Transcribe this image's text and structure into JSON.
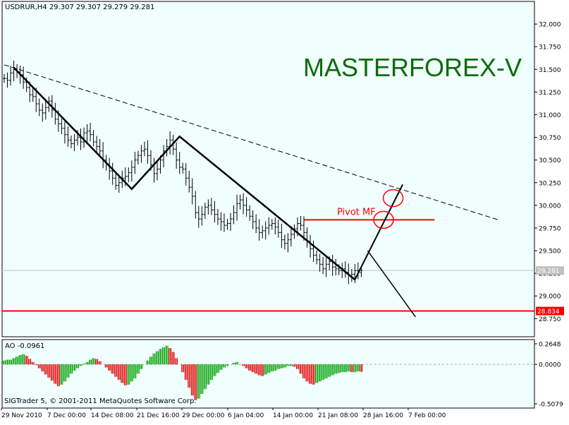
{
  "window": {
    "header": "USDRUR,H4  29.307 29.307 29.279 29.281",
    "watermark": "MASTERFOREX-V",
    "copyright": "SIGTrader 5, © 2001-2011 MetaQuotes Software Corp."
  },
  "colors": {
    "background": "#ffffff",
    "plot_background": "#f0fffe",
    "price_bars": "#000000",
    "watermark": "#0b6b0b",
    "pivot_line": "#ff0000",
    "support_line": "#ff0000",
    "ao_up": "#00a000",
    "ao_down": "#e00000",
    "current_price_line": "#c0c0c0"
  },
  "chart_data": [
    {
      "type": "bar",
      "name": "price",
      "title": "USDRUR,H4",
      "ohlc_last": {
        "open": 29.307,
        "high": 29.307,
        "low": 29.279,
        "close": 29.281
      },
      "ylim": [
        28.55,
        32.25
      ],
      "y_ticks": [
        "32.000",
        "31.750",
        "31.500",
        "31.250",
        "31.000",
        "30.750",
        "30.500",
        "30.250",
        "30.000",
        "29.750",
        "29.500",
        "29.250",
        "29.000",
        "28.750"
      ],
      "x_ticks": [
        "29 Nov 2010",
        "7 Dec 00:00",
        "14 Dec 08:00",
        "21 Dec 16:00",
        "29 Dec 00:00",
        "6 Jan 04:00",
        "14 Jan 00:00",
        "21 Jan 08:00",
        "28 Jan 16:00",
        "7 Feb 00:00"
      ],
      "series": [
        {
          "values": [
            31.4,
            31.38,
            31.46,
            31.5,
            31.47,
            31.44,
            31.36,
            31.3,
            31.22,
            31.2,
            31.12,
            31.05,
            31.02,
            31.08,
            31.15,
            31.05,
            30.95,
            30.9,
            30.85,
            30.78,
            30.72,
            30.68,
            30.72,
            30.75,
            30.7,
            30.8,
            30.82,
            30.78,
            30.7,
            30.65,
            30.6,
            30.5,
            30.45,
            30.38,
            30.3,
            30.22,
            30.25,
            30.3,
            30.32,
            30.36,
            30.42,
            30.5,
            30.55,
            30.6,
            30.62,
            30.55,
            30.45,
            30.35,
            30.4,
            30.5,
            30.6,
            30.65,
            30.72,
            30.62,
            30.5,
            30.42,
            30.4,
            30.3,
            30.2,
            30.1,
            29.92,
            29.85,
            29.9,
            29.98,
            30.0,
            29.95,
            29.9,
            29.85,
            29.82,
            29.78,
            29.8,
            29.85,
            29.92,
            30.02,
            30.06,
            30.0,
            29.95,
            29.88,
            29.82,
            29.75,
            29.7,
            29.72,
            29.75,
            29.78,
            29.8,
            29.76,
            29.7,
            29.62,
            29.58,
            29.62,
            29.68,
            29.74,
            29.8,
            29.78,
            29.7,
            29.6,
            29.52,
            29.45,
            29.4,
            29.35,
            29.3,
            29.35,
            29.38,
            29.32,
            29.3,
            29.28,
            29.3,
            29.26,
            29.22,
            29.24,
            29.28,
            29.26,
            29.28
          ]
        }
      ],
      "overlays": {
        "zigzag": [
          {
            "bar": 3,
            "value": 31.52
          },
          {
            "bar": 40,
            "value": 30.18
          },
          {
            "bar": 55,
            "value": 30.76
          },
          {
            "bar": 110,
            "value": 29.18
          }
        ],
        "dashed_trendline": [
          {
            "bar": 0,
            "value": 31.55
          },
          {
            "bar": 155,
            "value": 29.84
          }
        ],
        "projection_up": [
          {
            "bar": 110,
            "value": 29.18
          },
          {
            "bar": 125,
            "value": 30.23
          }
        ],
        "projection_down": [
          {
            "bar": 114,
            "value": 29.5
          },
          {
            "bar": 129,
            "value": 28.77
          }
        ],
        "pivot": {
          "label": "Pivot MF",
          "value": 29.84,
          "from_bar": 94,
          "to_bar": 135
        },
        "support": {
          "label": "28.834",
          "value": 28.834
        },
        "current_price": {
          "label": "29.281",
          "value": 29.281
        },
        "circles": [
          {
            "bar": 122,
            "value": 30.08
          },
          {
            "bar": 119,
            "value": 29.84
          }
        ]
      }
    },
    {
      "type": "bar",
      "name": "AO",
      "title": "AO -0.0961",
      "ylim": [
        -0.5079,
        0.2648
      ],
      "y_ticks": [
        "0.2648",
        "0.0000",
        "-0.5079"
      ],
      "series": [
        {
          "values": [
            0.05,
            0.06,
            0.06,
            0.08,
            0.1,
            0.12,
            0.13,
            0.11,
            0.07,
            0.03,
            -0.01,
            -0.05,
            -0.09,
            -0.13,
            -0.17,
            -0.21,
            -0.25,
            -0.28,
            -0.26,
            -0.22,
            -0.17,
            -0.12,
            -0.08,
            -0.05,
            -0.02,
            0.01,
            0.03,
            0.06,
            0.08,
            0.07,
            0.04,
            0.0,
            -0.04,
            -0.08,
            -0.12,
            -0.16,
            -0.2,
            -0.24,
            -0.27,
            -0.26,
            -0.22,
            -0.18,
            -0.12,
            -0.06,
            0.0,
            0.05,
            0.1,
            0.14,
            0.17,
            0.2,
            0.22,
            0.24,
            0.21,
            0.16,
            0.08,
            0.0,
            -0.1,
            -0.2,
            -0.3,
            -0.4,
            -0.46,
            -0.44,
            -0.38,
            -0.32,
            -0.26,
            -0.2,
            -0.15,
            -0.11,
            -0.07,
            -0.04,
            -0.02,
            0.0,
            0.02,
            0.03,
            0.0,
            -0.02,
            -0.05,
            -0.08,
            -0.1,
            -0.12,
            -0.14,
            -0.15,
            -0.13,
            -0.11,
            -0.09,
            -0.08,
            -0.06,
            -0.05,
            -0.04,
            -0.02,
            -0.02,
            -0.03,
            -0.06,
            -0.12,
            -0.18,
            -0.22,
            -0.25,
            -0.26,
            -0.24,
            -0.22,
            -0.2,
            -0.18,
            -0.16,
            -0.14,
            -0.12,
            -0.11,
            -0.1,
            -0.1,
            -0.09,
            -0.1,
            -0.1,
            -0.09,
            -0.0961
          ]
        }
      ]
    }
  ]
}
